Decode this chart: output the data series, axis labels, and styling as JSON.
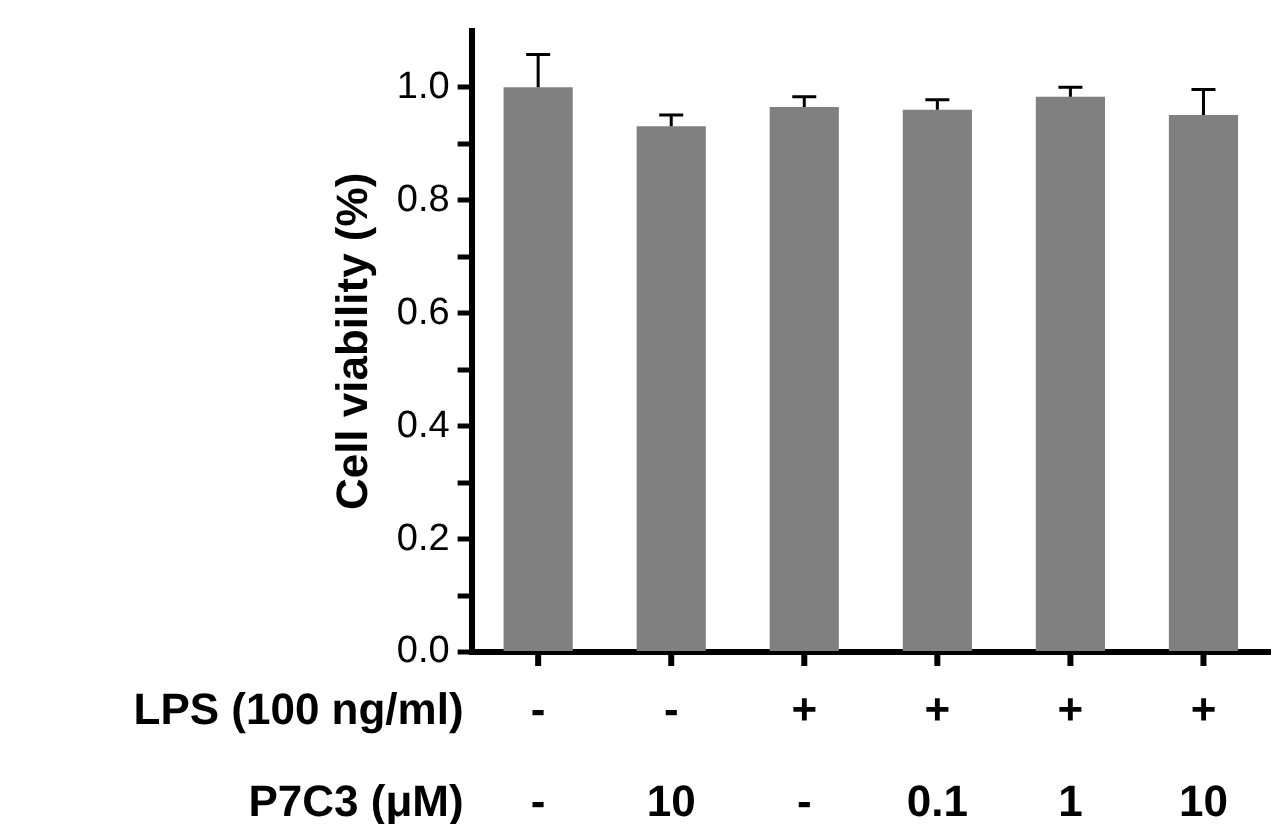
{
  "chart_data": {
    "type": "bar",
    "ylabel": "Cell viability (%)",
    "categories": [
      "-\n-",
      "-\n10",
      "+\n-",
      "+\n0.1",
      "+\n1",
      "+\n10"
    ],
    "annotations": [
      "LPS (100 ng/ml)",
      "P7C3 (μM)"
    ],
    "values": [
      1.0,
      0.931,
      0.965,
      0.96,
      0.983,
      0.951
    ],
    "errors": [
      [
        1.0,
        1.058
      ],
      [
        0.931,
        0.951
      ],
      [
        0.965,
        0.983
      ],
      [
        0.96,
        0.978
      ],
      [
        0.983,
        1.0
      ],
      [
        0.951,
        0.996
      ]
    ],
    "color": "#808080",
    "ylim": [
      0,
      1.1
    ],
    "yticks": [
      {
        "value": 0,
        "label": "0.0"
      },
      {
        "value": 0.1,
        "label": null
      },
      {
        "value": 0.2,
        "label": "0.2"
      },
      {
        "value": 0.3,
        "label": null
      },
      {
        "value": 0.4,
        "label": "0.4"
      },
      {
        "value": 0.5,
        "label": null
      },
      {
        "value": 0.6,
        "label": "0.6"
      },
      {
        "value": 0.7,
        "label": null
      },
      {
        "value": 0.8,
        "label": "0.8"
      },
      {
        "value": 0.9,
        "label": null
      },
      {
        "value": 1.0,
        "label": "1.0"
      }
    ],
    "grid": false,
    "legend": false
  }
}
